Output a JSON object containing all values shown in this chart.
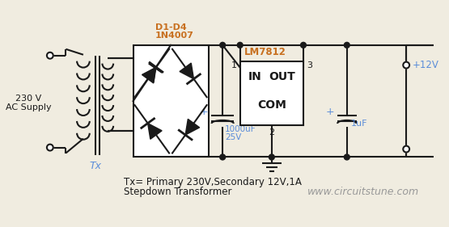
{
  "bg_color": "#f0ece0",
  "circuit_bg": "#ffffff",
  "line_color": "#1a1a1a",
  "text_color_blue": "#5b8dd9",
  "text_color_orange": "#c87020",
  "text_color_gray": "#999999",
  "title_line1": "Tx= Primary 230V,Secondary 12V,1A",
  "title_line2": "Stepdown Transformer",
  "website": "www.circuitstune.com",
  "ac_label_line1": "230 V",
  "ac_label_line2": "AC Supply",
  "tx_label": "Tx",
  "diode_label_line1": "D1-D4",
  "diode_label_line2": "1N4007",
  "ic_label": "LM7812",
  "ic_in": "IN",
  "ic_out": "OUT",
  "ic_com": "COM",
  "pin1": "1",
  "pin2": "2",
  "pin3": "3",
  "cap1_plus": "+",
  "cap1_label_line1": "1000uF",
  "cap1_label_line2": "25V",
  "cap2_plus": "+",
  "cap2_label": "1uF",
  "out_label": "+12V"
}
